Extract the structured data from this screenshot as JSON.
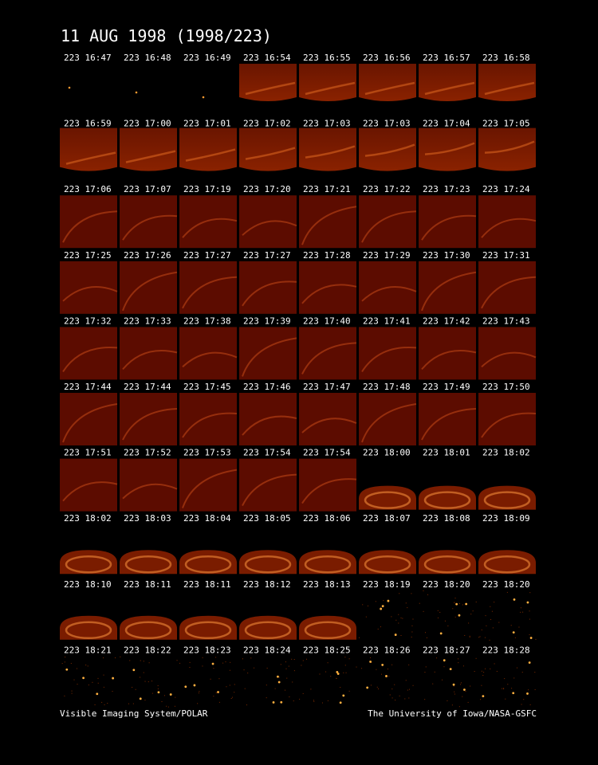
{
  "header": {
    "title": "11 AUG 1998  (1998/223)"
  },
  "panels": [
    [
      "223 16:47",
      "223 16:48",
      "223 16:49",
      "223 16:54",
      "223 16:55",
      "223 16:56",
      "223 16:57",
      "223 16:58"
    ],
    [
      "223 16:59",
      "223 17:00",
      "223 17:01",
      "223 17:02",
      "223 17:03",
      "223 17:03",
      "223 17:04",
      "223 17:05"
    ],
    [
      "223 17:06",
      "223 17:07",
      "223 17:19",
      "223 17:20",
      "223 17:21",
      "223 17:22",
      "223 17:23",
      "223 17:24"
    ],
    [
      "223 17:25",
      "223 17:26",
      "223 17:27",
      "223 17:27",
      "223 17:28",
      "223 17:29",
      "223 17:30",
      "223 17:31"
    ],
    [
      "223 17:32",
      "223 17:33",
      "223 17:38",
      "223 17:39",
      "223 17:40",
      "223 17:41",
      "223 17:42",
      "223 17:43"
    ],
    [
      "223 17:44",
      "223 17:44",
      "223 17:45",
      "223 17:46",
      "223 17:47",
      "223 17:48",
      "223 17:49",
      "223 17:50"
    ],
    [
      "223 17:51",
      "223 17:52",
      "223 17:53",
      "223 17:54",
      "223 17:54",
      "223 18:00",
      "223 18:01",
      "223 18:02"
    ],
    [
      "223 18:02",
      "223 18:03",
      "223 18:04",
      "223 18:05",
      "223 18:06",
      "223 18:07",
      "223 18:08",
      "223 18:09"
    ],
    [
      "223 18:10",
      "223 18:11",
      "223 18:11",
      "223 18:12",
      "223 18:13",
      "223 18:19",
      "223 18:20",
      "223 18:20"
    ],
    [
      "223 18:21",
      "223 18:22",
      "223 18:23",
      "223 18:24",
      "223 18:25",
      "223 18:26",
      "223 18:27",
      "223 18:28"
    ]
  ],
  "footer": {
    "left": "Visible Imaging System/POLAR",
    "right": "The University of Iowa/NASA-GSFC"
  }
}
